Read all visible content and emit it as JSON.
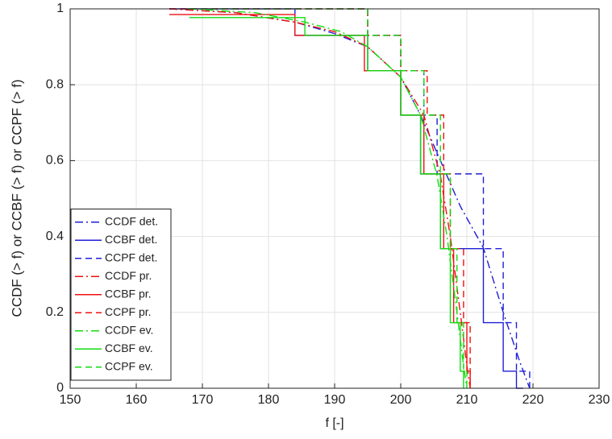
{
  "chart_data": {
    "type": "line",
    "xlabel": "f [-]",
    "ylabel": "CCDF (> f) or CCBF (> f) or CCPF (> f)",
    "xlim": [
      150,
      230
    ],
    "ylim": [
      0,
      1
    ],
    "xticks": [
      150,
      160,
      170,
      180,
      190,
      200,
      210,
      220,
      230
    ],
    "yticks": [
      0,
      0.2,
      0.4,
      0.6,
      0.8,
      1
    ],
    "grid": true,
    "legend": "lower left",
    "series": [
      {
        "name": "CCDF det.",
        "color": "#1f1fd6",
        "linestyle": "dashdot",
        "drawstyle": "default",
        "x": [
          165,
          175,
          184,
          190,
          195,
          200,
          203,
          206,
          209,
          212.5,
          215.5,
          218,
          219.5
        ],
        "values": [
          1,
          0.99,
          0.965,
          0.935,
          0.9,
          0.82,
          0.72,
          0.6,
          0.48,
          0.37,
          0.2,
          0.07,
          0
        ]
      },
      {
        "name": "CCBF det.",
        "color": "#1f1fd6",
        "linestyle": "solid",
        "drawstyle": "steps-post",
        "x": [
          165,
          184,
          195,
          200,
          203,
          206,
          212.5,
          215.5,
          217.5,
          218.5
        ],
        "values": [
          1,
          0.93,
          0.837,
          0.72,
          0.565,
          0.368,
          0.173,
          0.045,
          0,
          0
        ]
      },
      {
        "name": "CCPF det.",
        "color": "#1f1fd6",
        "linestyle": "dashed",
        "drawstyle": "steps-post",
        "x": [
          165,
          195,
          200,
          203.5,
          205.5,
          212.5,
          215.5,
          217.5,
          219.5,
          219.5
        ],
        "values": [
          1,
          0.93,
          0.837,
          0.72,
          0.565,
          0.368,
          0.173,
          0.045,
          0,
          0
        ]
      },
      {
        "name": "CCDF pr.",
        "color": "#ee1111",
        "linestyle": "dashdot",
        "drawstyle": "default",
        "x": [
          165,
          175,
          184,
          190,
          195,
          200,
          203.5,
          206,
          207.5,
          209,
          210,
          210.5
        ],
        "values": [
          1,
          0.99,
          0.965,
          0.94,
          0.9,
          0.82,
          0.72,
          0.56,
          0.4,
          0.2,
          0.06,
          0
        ]
      },
      {
        "name": "CCBF pr.",
        "color": "#ee1111",
        "linestyle": "solid",
        "drawstyle": "steps-post",
        "x": [
          165,
          184,
          194.5,
          200,
          203.5,
          206.5,
          208,
          210,
          210.5,
          210.5
        ],
        "values": [
          0.985,
          0.93,
          0.837,
          0.72,
          0.565,
          0.368,
          0.173,
          0.045,
          0,
          0
        ]
      },
      {
        "name": "CCPF pr.",
        "color": "#ee1111",
        "linestyle": "dashed",
        "drawstyle": "steps-post",
        "x": [
          165,
          195,
          200,
          204,
          206.5,
          207.5,
          209.5,
          210.5,
          210.5
        ],
        "values": [
          1,
          0.93,
          0.837,
          0.72,
          0.565,
          0.368,
          0.173,
          0,
          0
        ]
      },
      {
        "name": "CCDF ev.",
        "color": "#11dd11",
        "linestyle": "dashdot",
        "drawstyle": "default",
        "x": [
          168,
          178,
          185.5,
          191,
          195,
          200,
          203,
          205.5,
          207,
          208.5,
          209.5,
          210
        ],
        "values": [
          1,
          0.99,
          0.965,
          0.94,
          0.9,
          0.82,
          0.72,
          0.56,
          0.4,
          0.2,
          0.06,
          0
        ]
      },
      {
        "name": "CCBF ev.",
        "color": "#11dd11",
        "linestyle": "solid",
        "drawstyle": "steps-post",
        "x": [
          168,
          185.5,
          195,
          200,
          203,
          206,
          207.5,
          209,
          209.5,
          209.5
        ],
        "values": [
          0.977,
          0.93,
          0.837,
          0.72,
          0.565,
          0.368,
          0.173,
          0.045,
          0,
          0
        ]
      },
      {
        "name": "CCPF ev.",
        "color": "#11dd11",
        "linestyle": "dashed",
        "drawstyle": "steps-post",
        "x": [
          168,
          195,
          200,
          203.5,
          206,
          207.5,
          208.5,
          209.5,
          210,
          210
        ],
        "values": [
          1,
          0.93,
          0.837,
          0.72,
          0.565,
          0.368,
          0.173,
          0.045,
          0,
          0
        ]
      }
    ]
  }
}
